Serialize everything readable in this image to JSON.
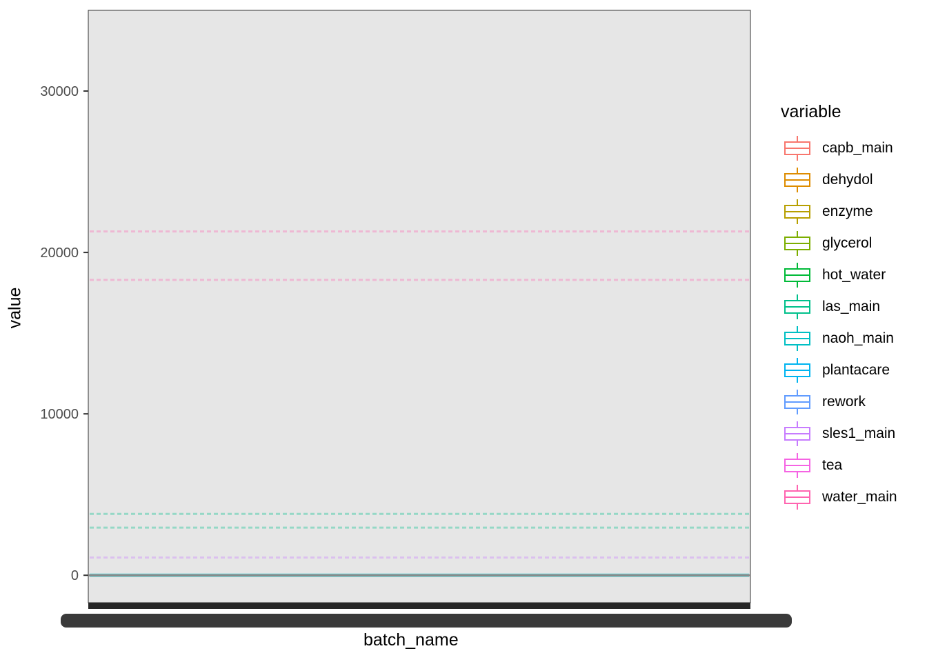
{
  "chart_data": {
    "type": "boxplot",
    "xlabel": "batch_name",
    "ylabel": "value",
    "ylim": [
      -1700,
      35000
    ],
    "y_ticks": [
      0,
      10000,
      20000,
      30000
    ],
    "y_tick_labels": [
      "0",
      "10000",
      "20000",
      "30000"
    ],
    "x_ticks_overlapping": true,
    "legend": {
      "title": "variable",
      "position": "right",
      "items": [
        {
          "name": "capb_main",
          "color": "#F8766D"
        },
        {
          "name": "dehydol",
          "color": "#DE8C00"
        },
        {
          "name": "enzyme",
          "color": "#B79F00"
        },
        {
          "name": "glycerol",
          "color": "#7CAE00"
        },
        {
          "name": "hot_water",
          "color": "#00BA38"
        },
        {
          "name": "las_main",
          "color": "#00C08B"
        },
        {
          "name": "naoh_main",
          "color": "#00BFC4"
        },
        {
          "name": "plantacare",
          "color": "#00B4F0"
        },
        {
          "name": "rework",
          "color": "#619CFF"
        },
        {
          "name": "sles1_main",
          "color": "#C77CFF"
        },
        {
          "name": "tea",
          "color": "#F564E3"
        },
        {
          "name": "water_main",
          "color": "#FF64B0"
        }
      ]
    },
    "bands": [
      {
        "variable": "water_main",
        "approx_value": 18300
      },
      {
        "variable": "water_main",
        "approx_value": 21300
      },
      {
        "variable": "las_main",
        "approx_value": 3800
      },
      {
        "variable": "las_main",
        "approx_value": 2950
      },
      {
        "variable": "sles1_main",
        "approx_value": 1100
      },
      {
        "variable": "naoh_main",
        "approx_value": 0
      }
    ],
    "panel_background": "#E6E6E6"
  }
}
